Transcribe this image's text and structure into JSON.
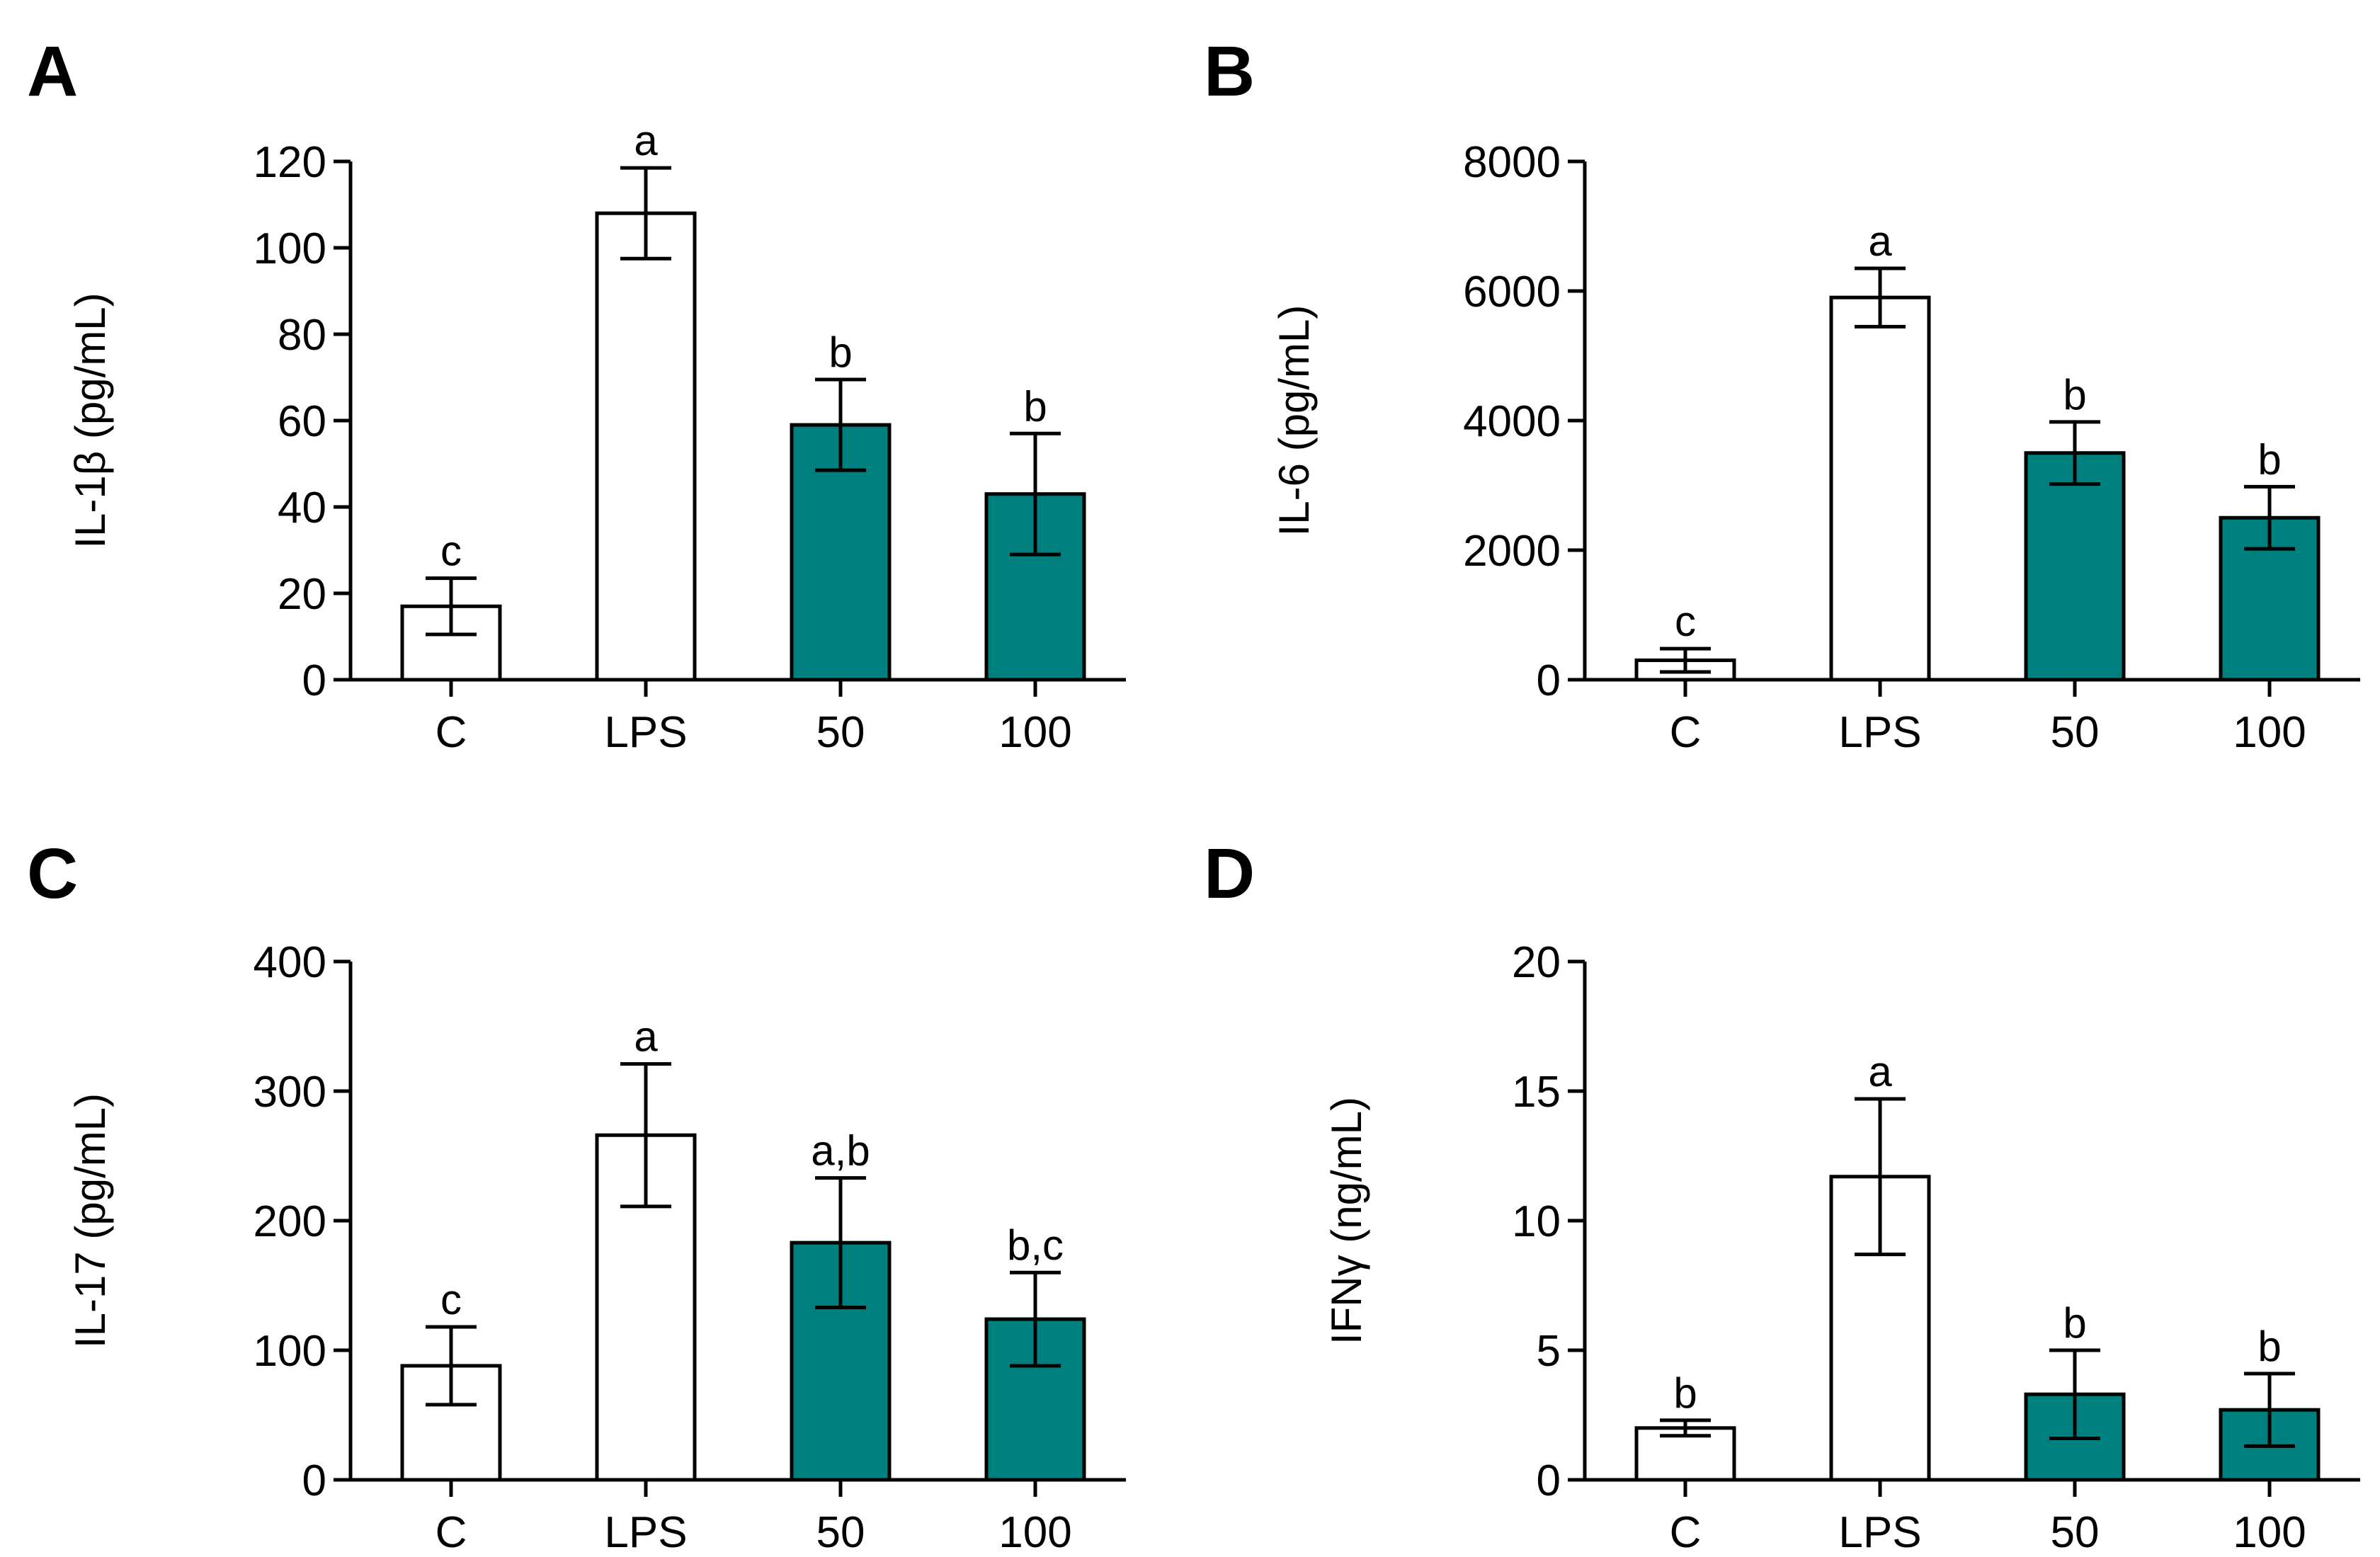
{
  "chart_data": [
    {
      "panel": "A",
      "type": "bar",
      "ylabel": "IL-1β (pg/mL)",
      "categories": [
        "C",
        "LPS",
        "50",
        "100"
      ],
      "values": [
        17,
        108,
        59,
        43
      ],
      "errors": [
        6.5,
        10.5,
        10.5,
        14
      ],
      "significance": [
        "c",
        "a",
        "b",
        "b"
      ],
      "fills": [
        "white",
        "white",
        "teal",
        "teal"
      ],
      "ylim": [
        0,
        120
      ],
      "yticks": [
        "0",
        "20",
        "40",
        "60",
        "80",
        "100",
        "120"
      ]
    },
    {
      "panel": "B",
      "type": "bar",
      "ylabel": "IL-6 (pg/mL)",
      "categories": [
        "C",
        "LPS",
        "50",
        "100"
      ],
      "values": [
        300,
        5900,
        3500,
        2500
      ],
      "errors": [
        180,
        450,
        480,
        480
      ],
      "significance": [
        "c",
        "a",
        "b",
        "b"
      ],
      "fills": [
        "white",
        "white",
        "teal",
        "teal"
      ],
      "ylim": [
        0,
        8000
      ],
      "yticks": [
        "0",
        "2000",
        "4000",
        "6000",
        "8000"
      ]
    },
    {
      "panel": "C",
      "type": "bar",
      "ylabel": "IL-17 (pg/mL)",
      "categories": [
        "C",
        "LPS",
        "50",
        "100"
      ],
      "values": [
        88,
        266,
        183,
        124
      ],
      "errors": [
        30,
        55,
        50,
        36
      ],
      "significance": [
        "c",
        "a",
        "a,b",
        "b,c"
      ],
      "fills": [
        "white",
        "white",
        "teal",
        "teal"
      ],
      "ylim": [
        0,
        400
      ],
      "yticks": [
        "0",
        "100",
        "200",
        "300",
        "400"
      ]
    },
    {
      "panel": "D",
      "type": "bar",
      "ylabel": "IFNγ (ng/mL)",
      "categories": [
        "C",
        "LPS",
        "50",
        "100"
      ],
      "values": [
        2,
        11.7,
        3.3,
        2.7
      ],
      "errors": [
        0.3,
        3,
        1.7,
        1.4
      ],
      "significance": [
        "b",
        "a",
        "b",
        "b"
      ],
      "fills": [
        "white",
        "white",
        "teal",
        "teal"
      ],
      "ylim": [
        0,
        20
      ],
      "yticks": [
        "0",
        "5",
        "10",
        "15",
        "20"
      ]
    }
  ],
  "colors": {
    "teal": "#007f7f",
    "white": "#ffffff",
    "stroke": "#000000"
  }
}
